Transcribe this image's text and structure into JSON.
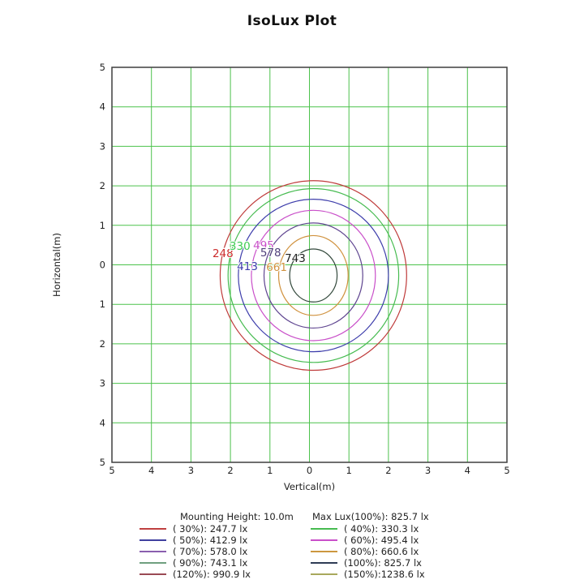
{
  "title": "IsoLux Plot",
  "chart_data": {
    "type": "contour",
    "subtype": "isolux",
    "xlabel": "Vertical(m)",
    "ylabel": "Horizontal(m)",
    "xlim": [
      -5,
      5
    ],
    "ylim": [
      -5,
      5
    ],
    "x_ticks": [
      "5",
      "4",
      "3",
      "2",
      "1",
      "0",
      "1",
      "2",
      "3",
      "4",
      "5"
    ],
    "y_ticks": [
      "5",
      "4",
      "3",
      "2",
      "1",
      "0",
      "1",
      "2",
      "3",
      "4",
      "5"
    ],
    "grid": true,
    "grid_color": "#4cc24c",
    "border_color": "#3f3f3f",
    "tick_color": "#222222",
    "mounting_height_m": 10.0,
    "max_lux_lx": 825.7,
    "center": {
      "x": 0.1,
      "y": -0.27
    },
    "contours": [
      {
        "percent": 30,
        "lux": 247.7,
        "label": "248",
        "color": "#bf3a3a",
        "label_color": "#cc2b2b",
        "rx": 2.36,
        "ry": 2.4,
        "label_pos": {
          "x": -2.19,
          "y": 0.2
        }
      },
      {
        "percent": 40,
        "lux": 330.3,
        "label": "330",
        "color": "#46bb50",
        "label_color": "#3ecc52",
        "rx": 2.16,
        "ry": 2.2,
        "label_pos": {
          "x": -1.76,
          "y": 0.38
        }
      },
      {
        "percent": 50,
        "lux": 412.9,
        "label": "413",
        "color": "#3d3dab",
        "label_color": "#3d3dab",
        "rx": 1.9,
        "ry": 1.93,
        "label_pos": {
          "x": -1.57,
          "y": -0.13
        }
      },
      {
        "percent": 60,
        "lux": 495.4,
        "label": "495",
        "color": "#c94fc9",
        "label_color": "#c94fc9",
        "rx": 1.57,
        "ry": 1.65,
        "label_pos": {
          "x": -1.16,
          "y": 0.4
        }
      },
      {
        "percent": 70,
        "lux": 578.0,
        "label": "578",
        "color": "#5f4590",
        "label_color": "#4f3f7a",
        "rx": 1.25,
        "ry": 1.33,
        "label_pos": {
          "x": -0.98,
          "y": 0.22
        }
      },
      {
        "percent": 80,
        "lux": 660.6,
        "label": "661",
        "color": "#d0923e",
        "label_color": "#d0923e",
        "rx": 0.88,
        "ry": 1.01,
        "label_pos": {
          "x": -0.83,
          "y": -0.15
        }
      },
      {
        "percent": 90,
        "lux": 743.1,
        "label": "743",
        "color": "#33493c",
        "label_color": "#222222",
        "rx": 0.6,
        "ry": 0.67,
        "label_pos": {
          "x": -0.36,
          "y": 0.07
        }
      }
    ]
  },
  "legend": {
    "header_left": "Mounting Height: 10.0m",
    "header_right": "Max Lux(100%): 825.7 lx",
    "items": [
      {
        "percent": 30,
        "lux": 247.7,
        "label": "( 30%): 247.7 lx",
        "color": "#bf4040"
      },
      {
        "percent": 40,
        "lux": 330.3,
        "label": "( 40%): 330.3 lx",
        "color": "#46bb50"
      },
      {
        "percent": 50,
        "lux": 412.9,
        "label": "( 50%): 412.9 lx",
        "color": "#40409f"
      },
      {
        "percent": 60,
        "lux": 495.4,
        "label": "( 60%): 495.4 lx",
        "color": "#c94fc9"
      },
      {
        "percent": 70,
        "lux": 578.0,
        "label": "( 70%): 578.0 lx",
        "color": "#8a5fae"
      },
      {
        "percent": 80,
        "lux": 660.6,
        "label": "( 80%): 660.6 lx",
        "color": "#cc973f"
      },
      {
        "percent": 90,
        "lux": 743.1,
        "label": "( 90%): 743.1 lx",
        "color": "#6f9f7f"
      },
      {
        "percent": 100,
        "lux": 825.7,
        "label": "(100%): 825.7 lx",
        "color": "#2f3c55"
      },
      {
        "percent": 120,
        "lux": 990.9,
        "label": "(120%): 990.9 lx",
        "color": "#9a4a55"
      },
      {
        "percent": 150,
        "lux": 1238.6,
        "label": "(150%):1238.6 lx",
        "color": "#a8a85c"
      }
    ]
  }
}
